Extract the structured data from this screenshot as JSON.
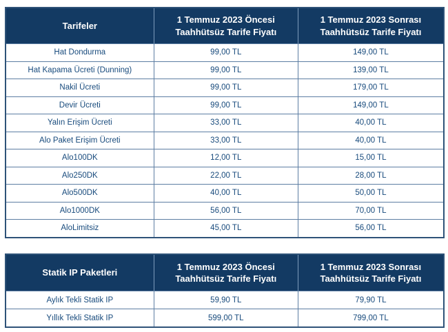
{
  "colors": {
    "header_background": "#133a63",
    "header_text": "#ffffff",
    "row_text": "#174a7c",
    "outer_border": "#2e5278",
    "grid_line": "#5c7da2",
    "header_divider": "#7f9cbc"
  },
  "tables": [
    {
      "id": "tarifeler",
      "header": [
        {
          "line1": "Tarifeler"
        },
        {
          "line1": "1 Temmuz 2023 Öncesi",
          "line2": "Taahhütsüz Tarife Fiyatı"
        },
        {
          "line1": "1 Temmuz 2023 Sonrası",
          "line2": "Taahhütsüz Tarife Fiyatı"
        }
      ],
      "rows": [
        [
          "Hat Dondurma",
          "99,00 TL",
          "149,00 TL"
        ],
        [
          "Hat Kapama Ücreti (Dunning)",
          "99,00 TL",
          "139,00 TL"
        ],
        [
          "Nakil Ücreti",
          "99,00 TL",
          "179,00 TL"
        ],
        [
          "Devir Ücreti",
          "99,00 TL",
          "149,00 TL"
        ],
        [
          "Yalın Erişim Ücreti",
          "33,00 TL",
          "40,00 TL"
        ],
        [
          "Alo Paket Erişim Ücreti",
          "33,00 TL",
          "40,00 TL"
        ],
        [
          "Alo100DK",
          "12,00 TL",
          "15,00 TL"
        ],
        [
          "Alo250DK",
          "22,00 TL",
          "28,00 TL"
        ],
        [
          "Alo500DK",
          "40,00 TL",
          "50,00 TL"
        ],
        [
          "Alo1000DK",
          "56,00 TL",
          "70,00 TL"
        ],
        [
          "AloLimitsiz",
          "45,00 TL",
          "56,00 TL"
        ]
      ]
    },
    {
      "id": "statik-ip-paketleri",
      "header": [
        {
          "line1": "Statik IP Paketleri"
        },
        {
          "line1": "1 Temmuz 2023 Öncesi",
          "line2": "Taahhütsüz Tarife Fiyatı"
        },
        {
          "line1": "1 Temmuz 2023 Sonrası",
          "line2": "Taahhütsüz Tarife Fiyatı"
        }
      ],
      "rows": [
        [
          "Aylık Tekli Statik IP",
          "59,90 TL",
          "79,90 TL"
        ],
        [
          "Yıllık Tekli Statik IP",
          "599,00 TL",
          "799,00 TL"
        ]
      ]
    }
  ]
}
